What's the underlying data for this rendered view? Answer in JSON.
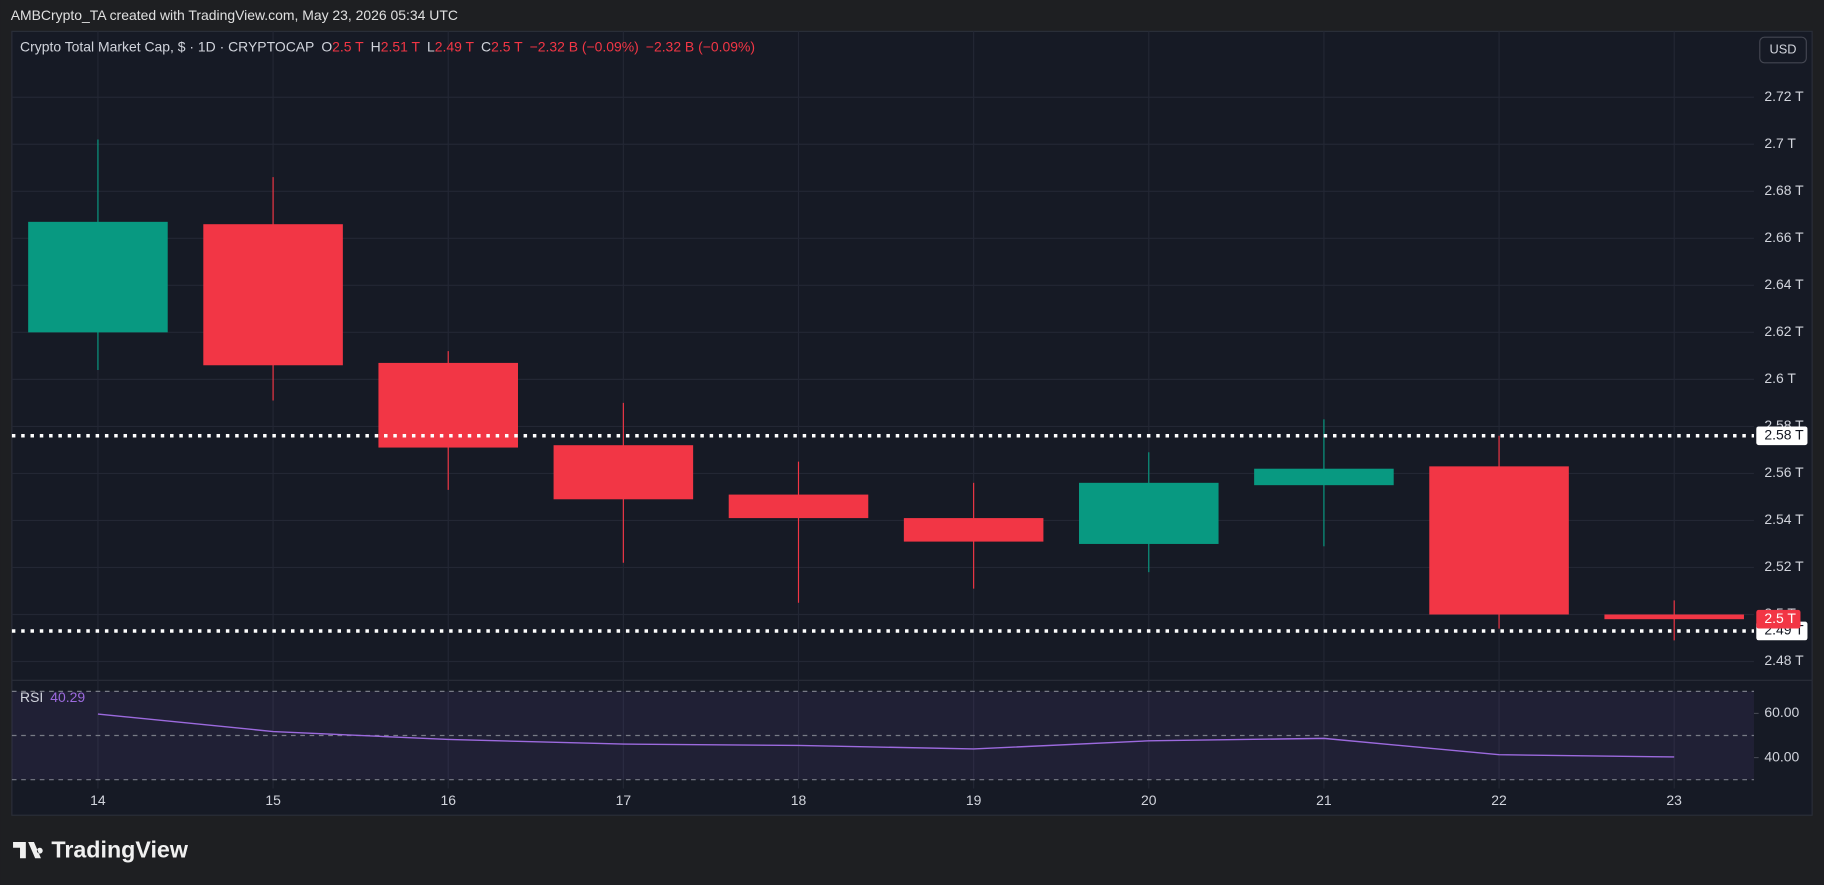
{
  "header": {
    "credit": "AMBCrypto_TA created with TradingView.com, May 23, 2026 05:34 UTC"
  },
  "brand": "TradingView",
  "currency_button": "USD",
  "chart_data": [
    {
      "type": "candlestick",
      "title": "Crypto Total Market Cap, $ · 1D · CRYPTOCAP",
      "legend_fields": [
        {
          "key": "O",
          "value": "2.5 T"
        },
        {
          "key": "H",
          "value": "2.51 T"
        },
        {
          "key": "L",
          "value": "2.49 T"
        },
        {
          "key": "C",
          "value": "2.5 T"
        }
      ],
      "changes": [
        "−2.32 B (−0.09%)",
        "−2.32 B (−0.09%)"
      ],
      "categories": [
        "14",
        "15",
        "16",
        "17",
        "18",
        "19",
        "20",
        "21",
        "22",
        "23"
      ],
      "open": [
        2.62,
        2.666,
        2.607,
        2.572,
        2.551,
        2.541,
        2.53,
        2.555,
        2.563,
        2.5
      ],
      "high": [
        2.702,
        2.686,
        2.612,
        2.59,
        2.565,
        2.556,
        2.569,
        2.583,
        2.576,
        2.506
      ],
      "low": [
        2.604,
        2.591,
        2.553,
        2.522,
        2.505,
        2.511,
        2.518,
        2.529,
        2.494,
        2.489
      ],
      "close": [
        2.667,
        2.606,
        2.571,
        2.549,
        2.541,
        2.531,
        2.556,
        2.562,
        2.5,
        2.498
      ],
      "up_color": "#089981",
      "down_color": "#f23645",
      "ylim": [
        2.472,
        2.748
      ],
      "yticks": [
        {
          "value": 2.48,
          "label": "2.48 T"
        },
        {
          "value": 2.5,
          "label": "2.5 T"
        },
        {
          "value": 2.52,
          "label": "2.52 T"
        },
        {
          "value": 2.54,
          "label": "2.54 T"
        },
        {
          "value": 2.56,
          "label": "2.56 T"
        },
        {
          "value": 2.58,
          "label": "2.58 T"
        },
        {
          "value": 2.6,
          "label": "2.6 T"
        },
        {
          "value": 2.62,
          "label": "2.62 T"
        },
        {
          "value": 2.64,
          "label": "2.64 T"
        },
        {
          "value": 2.66,
          "label": "2.66 T"
        },
        {
          "value": 2.68,
          "label": "2.68 T"
        },
        {
          "value": 2.7,
          "label": "2.7 T"
        },
        {
          "value": 2.72,
          "label": "2.72 T"
        }
      ],
      "levels": [
        {
          "value": 2.576,
          "label": "2.58 T"
        },
        {
          "value": 2.493,
          "label": "2.49 T"
        }
      ],
      "last_price_label": "2.5 T",
      "grid": true
    },
    {
      "type": "line",
      "title": "RSI",
      "value_label": "40.29",
      "values": [
        59.7,
        51.8,
        48.2,
        46.1,
        45.5,
        43.9,
        47.6,
        48.7,
        41.3,
        40.29
      ],
      "color": "#9c6ade",
      "ylim": [
        26,
        75
      ],
      "yticks": [
        {
          "value": 40,
          "label": "40.00"
        },
        {
          "value": 60,
          "label": "60.00"
        }
      ],
      "bands": [
        70,
        50,
        30
      ]
    }
  ]
}
